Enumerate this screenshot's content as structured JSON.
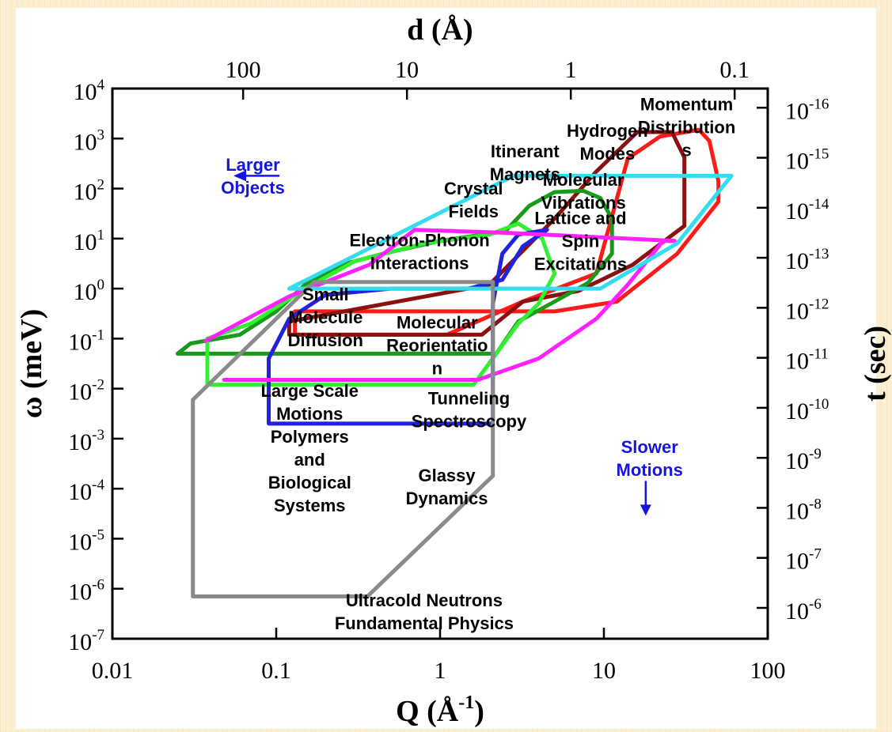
{
  "chart_data": {
    "type": "region-map",
    "xlabel": "Q (Å",
    "xlabel_sup": "-1",
    "xlabel_close": ")",
    "ylabel": "ω (meV)",
    "top_axis_label": "d (Å)",
    "right_axis_label": "t (sec)",
    "xscale": "log",
    "yscale": "log",
    "xlim": [
      0.01,
      100
    ],
    "ylim": [
      1e-07,
      10000
    ],
    "x_ticks": [
      {
        "value": 0.01,
        "label": "0.01"
      },
      {
        "value": 0.1,
        "label": "0.1"
      },
      {
        "value": 1,
        "label": "1"
      },
      {
        "value": 10,
        "label": "10"
      },
      {
        "value": 100,
        "label": "100"
      }
    ],
    "y_ticks": [
      {
        "exp": -7,
        "base": "10",
        "sup": "-7"
      },
      {
        "exp": -6,
        "base": "10",
        "sup": "-6"
      },
      {
        "exp": -5,
        "base": "10",
        "sup": "-5"
      },
      {
        "exp": -4,
        "base": "10",
        "sup": "-4"
      },
      {
        "exp": -3,
        "base": "10",
        "sup": "-3"
      },
      {
        "exp": -2,
        "base": "10",
        "sup": "-2"
      },
      {
        "exp": -1,
        "base": "10",
        "sup": "-1"
      },
      {
        "exp": 0,
        "base": "10",
        "sup": "0"
      },
      {
        "exp": 1,
        "base": "10",
        "sup": "1"
      },
      {
        "exp": 2,
        "base": "10",
        "sup": "2"
      },
      {
        "exp": 3,
        "base": "10",
        "sup": "3"
      },
      {
        "exp": 4,
        "base": "10",
        "sup": "4"
      }
    ],
    "top_ticks": [
      {
        "q": 0.0628,
        "label": "100"
      },
      {
        "q": 0.628,
        "label": "10"
      },
      {
        "q": 6.28,
        "label": "1"
      },
      {
        "q": 62.8,
        "label": "0.1"
      }
    ],
    "right_ticks": [
      {
        "omega": 4135,
        "base": "10",
        "sup": "-16"
      },
      {
        "omega": 413.5,
        "base": "10",
        "sup": "-15"
      },
      {
        "omega": 41.35,
        "base": "10",
        "sup": "-14"
      },
      {
        "omega": 4.135,
        "base": "10",
        "sup": "-13"
      },
      {
        "omega": 0.4135,
        "base": "10",
        "sup": "-12"
      },
      {
        "omega": 0.04135,
        "base": "10",
        "sup": "-11"
      },
      {
        "omega": 0.004135,
        "base": "10",
        "sup": "-10"
      },
      {
        "omega": 0.0004135,
        "base": "10",
        "sup": "-9"
      },
      {
        "omega": 4.135e-05,
        "base": "10",
        "sup": "-8"
      },
      {
        "omega": 4.135e-06,
        "base": "10",
        "sup": "-7"
      },
      {
        "omega": 4.135e-07,
        "base": "10",
        "sup": "-6"
      }
    ],
    "regions": [
      {
        "color": "#ff1a1a",
        "points": [
          [
            0.13,
            0.35
          ],
          [
            0.13,
            0.12
          ],
          [
            1.1,
            0.12
          ],
          [
            3.2,
            0.55
          ],
          [
            9,
            2
          ],
          [
            14,
            400
          ],
          [
            22,
            1100
          ],
          [
            38,
            1500
          ],
          [
            44,
            900
          ],
          [
            50,
            140
          ],
          [
            50,
            55
          ],
          [
            28,
            5
          ],
          [
            12,
            0.55
          ],
          [
            5,
            0.35
          ],
          [
            0.13,
            0.35
          ]
        ]
      },
      {
        "color": "#8b1010",
        "points": [
          [
            0.12,
            0.12
          ],
          [
            0.12,
            0.22
          ],
          [
            2,
            1.2
          ],
          [
            5,
            25
          ],
          [
            9,
            220
          ],
          [
            16,
            1350
          ],
          [
            26,
            1350
          ],
          [
            31,
            420
          ],
          [
            31,
            18
          ],
          [
            15,
            3
          ],
          [
            7,
            0.9
          ],
          [
            3.2,
            0.55
          ],
          [
            1.8,
            0.12
          ],
          [
            0.12,
            0.12
          ]
        ]
      },
      {
        "color": "#1a9a1a",
        "points": [
          [
            0.025,
            0.05
          ],
          [
            0.03,
            0.08
          ],
          [
            0.06,
            0.12
          ],
          [
            0.1,
            0.35
          ],
          [
            0.15,
            1.2
          ],
          [
            0.25,
            3
          ],
          [
            0.45,
            5
          ],
          [
            1,
            9
          ],
          [
            2.5,
            14
          ],
          [
            3.5,
            45
          ],
          [
            5,
            85
          ],
          [
            7.5,
            90
          ],
          [
            9.5,
            65
          ],
          [
            11.2,
            25
          ],
          [
            11.2,
            5
          ],
          [
            8,
            1.3
          ],
          [
            5,
            0.55
          ],
          [
            3,
            0.22
          ],
          [
            2.2,
            0.05
          ],
          [
            0.025,
            0.05
          ]
        ]
      },
      {
        "color": "#33ee33",
        "points": [
          [
            0.038,
            0.012
          ],
          [
            0.038,
            0.1
          ],
          [
            0.07,
            0.2
          ],
          [
            0.15,
            1
          ],
          [
            0.3,
            3.5
          ],
          [
            0.8,
            8
          ],
          [
            2,
            12
          ],
          [
            3,
            20
          ],
          [
            4.2,
            10
          ],
          [
            5,
            2
          ],
          [
            4,
            0.5
          ],
          [
            3,
            0.2
          ],
          [
            2.2,
            0.05
          ],
          [
            1.6,
            0.012
          ],
          [
            0.038,
            0.012
          ]
        ]
      },
      {
        "color": "#2222dd",
        "points": [
          [
            0.09,
            0.002
          ],
          [
            0.09,
            0.04
          ],
          [
            0.12,
            0.25
          ],
          [
            0.2,
            0.75
          ],
          [
            0.5,
            1
          ],
          [
            1.5,
            1
          ],
          [
            2.4,
            1.5
          ],
          [
            3.2,
            7
          ],
          [
            4.5,
            15
          ],
          [
            3,
            12
          ],
          [
            2.4,
            5
          ],
          [
            2.1,
            0.5
          ],
          [
            2.1,
            0.002
          ],
          [
            0.09,
            0.002
          ]
        ]
      },
      {
        "color": "#ff22ff",
        "points": [
          [
            0.048,
            0.015
          ],
          [
            1.7,
            0.015
          ],
          [
            4,
            0.04
          ],
          [
            9,
            0.25
          ],
          [
            14,
            1.2
          ],
          [
            23,
            9
          ],
          [
            27,
            9
          ]
        ]
      },
      {
        "color": "#ff22ff",
        "points": [
          [
            0.037,
            0.09
          ],
          [
            0.12,
            0.7
          ],
          [
            0.37,
            3
          ],
          [
            0.7,
            15
          ],
          [
            2.6,
            13
          ],
          [
            27,
            9
          ]
        ]
      },
      {
        "color": "#33ddee",
        "points": [
          [
            0.12,
            1
          ],
          [
            9.5,
            1
          ],
          [
            28,
            8
          ],
          [
            60,
            180
          ],
          [
            2.8,
            180
          ],
          [
            0.12,
            1
          ]
        ]
      },
      {
        "color": "#8a8a8a",
        "points": [
          [
            0.031,
            7e-07
          ],
          [
            0.36,
            7e-07
          ],
          [
            2.1,
            0.00018
          ],
          [
            2.1,
            1.35
          ],
          [
            0.17,
            1.35
          ],
          [
            0.031,
            0.006
          ],
          [
            0.031,
            7e-07
          ]
        ]
      }
    ],
    "annotations": [
      {
        "lines": [
          "Momentum",
          "Distribution",
          "s"
        ],
        "x": 32,
        "y": 1700,
        "color": "#000000"
      },
      {
        "lines": [
          "Hydrogen",
          "Modes"
        ],
        "x": 10.5,
        "y": 850,
        "color": "#000000"
      },
      {
        "lines": [
          "Itinerant",
          "Magnets"
        ],
        "x": 3.3,
        "y": 330,
        "color": "#000000"
      },
      {
        "lines": [
          "Crystal",
          "Fields"
        ],
        "x": 1.6,
        "y": 60,
        "color": "#000000"
      },
      {
        "lines": [
          "Molecular",
          "Vibrations"
        ],
        "x": 7.5,
        "y": 90,
        "color": "#000000"
      },
      {
        "lines": [
          "Lattice and",
          "Spin",
          "Excitations"
        ],
        "x": 7.2,
        "y": 9,
        "color": "#000000"
      },
      {
        "lines": [
          "Electron-Phonon",
          "Interactions"
        ],
        "x": 0.75,
        "y": 5.5,
        "color": "#000000"
      },
      {
        "lines": [
          "Small",
          "Molecule",
          "Diffusion"
        ],
        "x": 0.2,
        "y": 0.27,
        "color": "#000000"
      },
      {
        "lines": [
          "Molecular",
          "Reorientatio",
          "n"
        ],
        "x": 0.96,
        "y": 0.075,
        "color": "#000000"
      },
      {
        "lines": [
          "Tunneling",
          "Spectroscopy"
        ],
        "x": 1.5,
        "y": 0.0038,
        "color": "#000000"
      },
      {
        "lines": [
          "Large Scale",
          "Motions",
          "Polymers",
          "and",
          "Biological",
          "Systems"
        ],
        "x": 0.16,
        "y": 0.00065,
        "color": "#000000"
      },
      {
        "lines": [
          "Glassy",
          "Dynamics"
        ],
        "x": 1.1,
        "y": 0.00011,
        "color": "#000000"
      },
      {
        "lines": [
          "Ultracold Neutrons",
          "Fundamental Physics"
        ],
        "x": 0.8,
        "y": 3.5e-07,
        "color": "#000000"
      },
      {
        "lines": [
          "Larger",
          "Objects"
        ],
        "x": 0.072,
        "y": 180,
        "color": "#1515dd"
      },
      {
        "lines": [
          "Slower",
          "Motions"
        ],
        "x": 19,
        "y": 0.00041,
        "color": "#1515dd"
      }
    ],
    "arrows": [
      {
        "direction": "left",
        "x": 0.06,
        "y": 180,
        "color": "#1515dd"
      },
      {
        "direction": "down",
        "x": 18,
        "y": 4.8e-05,
        "color": "#1515dd"
      }
    ]
  }
}
